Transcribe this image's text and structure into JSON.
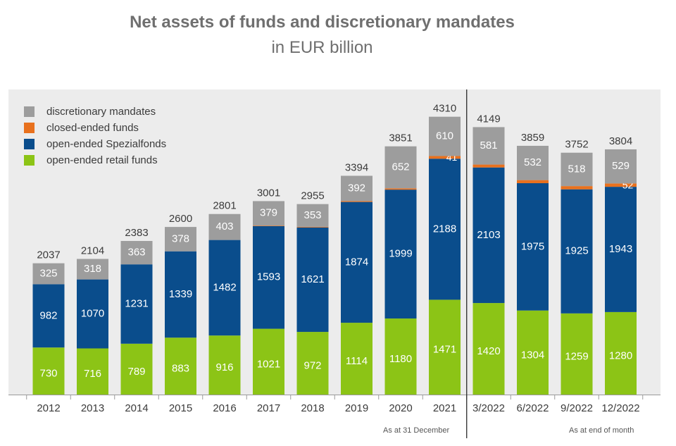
{
  "colors": {
    "discretionary": "#9d9d9d",
    "closed": "#e8711e",
    "spezial": "#0a4d8c",
    "retail": "#8cc416"
  },
  "chart_data": {
    "type": "bar",
    "stacked": true,
    "title": "Net assets of funds and discretionary mandates",
    "subtitle": "in EUR billion",
    "categories": [
      "2012",
      "2013",
      "2014",
      "2015",
      "2016",
      "2017",
      "2018",
      "2019",
      "2020",
      "2021",
      "3/2022",
      "6/2022",
      "9/2022",
      "12/2022"
    ],
    "series": [
      {
        "name": "open-ended retail funds",
        "values": [
          730,
          716,
          789,
          883,
          916,
          1021,
          972,
          1114,
          1180,
          1471,
          1420,
          1304,
          1259,
          1280
        ]
      },
      {
        "name": "open-ended Spezialfonds",
        "values": [
          982,
          1070,
          1231,
          1339,
          1482,
          1593,
          1621,
          1874,
          1999,
          2188,
          2103,
          1975,
          1925,
          1943
        ]
      },
      {
        "name": "closed-ended funds",
        "values": [
          0,
          0,
          0,
          0,
          0,
          8,
          9,
          14,
          20,
          41,
          45,
          48,
          50,
          52
        ]
      },
      {
        "name": "discretionary mandates",
        "values": [
          325,
          318,
          363,
          378,
          403,
          379,
          353,
          392,
          652,
          610,
          581,
          532,
          518,
          529
        ]
      }
    ],
    "totals": [
      2037,
      2104,
      2383,
      2600,
      2801,
      3001,
      2955,
      3394,
      3851,
      4310,
      4149,
      3859,
      3752,
      3804
    ],
    "label_closed": [
      false,
      false,
      false,
      false,
      false,
      false,
      false,
      false,
      false,
      true,
      false,
      false,
      false,
      true
    ],
    "legend": [
      "discretionary mandates",
      "closed-ended funds",
      "open-ended Spezialfonds",
      "open-ended retail funds"
    ],
    "legend_position": "top-left",
    "ylim": [
      0,
      4700
    ],
    "grid": false,
    "notes": [
      "As at 31 December",
      "As at end of month"
    ]
  }
}
